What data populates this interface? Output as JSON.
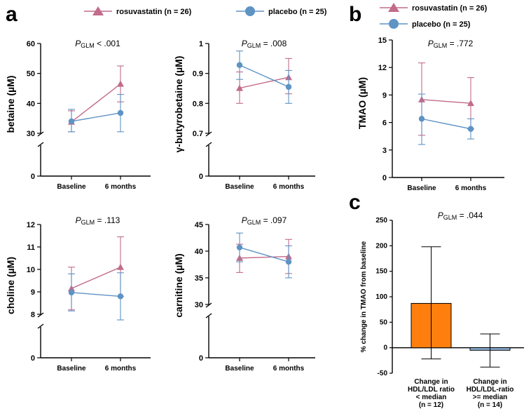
{
  "legend_a": {
    "rosuvastatin": "rosuvastatin (n = 26)",
    "placebo": "placebo (n = 25)"
  },
  "legend_b": {
    "rosuvastatin": "rosuvastatin (n = 26)",
    "placebo": "placebo (n = 25)"
  },
  "colors": {
    "rosuvastatin": "#c26b8a",
    "placebo": "#5e93c4",
    "bar_low": "#ff7f0e",
    "bar_high": "#8fb3d9"
  },
  "chart_data": [
    {
      "id": "betaine",
      "panel": "a",
      "type": "line",
      "pvalue": "P_GLM < .001",
      "ylabel": "betaine (µM)",
      "categories": [
        "Baseline",
        "6 months"
      ],
      "ylim": [
        0,
        60
      ],
      "yticks": [
        0,
        30,
        40,
        50,
        60
      ],
      "axis_break": true,
      "series": [
        {
          "name": "rosuvastatin",
          "values": [
            33.8,
            46.5
          ],
          "err_low": [
            30.5,
            40.5
          ],
          "err_high": [
            37.5,
            52.5
          ]
        },
        {
          "name": "placebo",
          "values": [
            34.0,
            36.8
          ],
          "err_low": [
            30.5,
            30.5
          ],
          "err_high": [
            38.0,
            43.0
          ]
        }
      ]
    },
    {
      "id": "gamma-butyrobetaine",
      "panel": "a",
      "type": "line",
      "pvalue": "P_GLM = .008",
      "ylabel": "γ-butyrobetaine (µM)",
      "categories": [
        "Baseline",
        "6 months"
      ],
      "ylim": [
        0,
        1.0
      ],
      "yticks": [
        0,
        0.7,
        0.8,
        0.9,
        1.0
      ],
      "axis_break": true,
      "series": [
        {
          "name": "rosuvastatin",
          "values": [
            0.851,
            0.887
          ],
          "err_low": [
            0.8,
            0.832
          ],
          "err_high": [
            0.905,
            0.95
          ]
        },
        {
          "name": "placebo",
          "values": [
            0.928,
            0.855
          ],
          "err_low": [
            0.88,
            0.8
          ],
          "err_high": [
            0.975,
            0.91
          ]
        }
      ]
    },
    {
      "id": "choline",
      "panel": "a",
      "type": "line",
      "pvalue": "P_GLM = .113",
      "ylabel": "choline (µM)",
      "categories": [
        "Baseline",
        "6 months"
      ],
      "ylim": [
        0,
        12
      ],
      "yticks": [
        0,
        8,
        9,
        10,
        11,
        12
      ],
      "axis_break": true,
      "series": [
        {
          "name": "rosuvastatin",
          "values": [
            9.15,
            10.1
          ],
          "err_low": [
            8.2,
            8.8
          ],
          "err_high": [
            10.1,
            11.45
          ]
        },
        {
          "name": "placebo",
          "values": [
            8.97,
            8.8
          ],
          "err_low": [
            8.15,
            7.75
          ],
          "err_high": [
            9.8,
            9.85
          ]
        }
      ]
    },
    {
      "id": "carnitine",
      "panel": "a",
      "type": "line",
      "pvalue": "P_GLM = .097",
      "ylabel": "carnitine (µM)",
      "categories": [
        "Baseline",
        "6 months"
      ],
      "ylim": [
        0,
        45
      ],
      "yticks": [
        0,
        30,
        35,
        40,
        45
      ],
      "axis_break": true,
      "series": [
        {
          "name": "rosuvastatin",
          "values": [
            38.7,
            39.0
          ],
          "err_low": [
            36.0,
            35.8
          ],
          "err_high": [
            41.3,
            42.2
          ]
        },
        {
          "name": "placebo",
          "values": [
            40.7,
            38.0
          ],
          "err_low": [
            38.0,
            35.0
          ],
          "err_high": [
            43.4,
            41.0
          ]
        }
      ]
    },
    {
      "id": "tmao",
      "panel": "b",
      "type": "line",
      "pvalue": "P_GLM = .772",
      "ylabel": "TMAO (µM)",
      "categories": [
        "Baseline",
        "6 months"
      ],
      "ylim": [
        0,
        15
      ],
      "yticks": [
        0,
        3,
        6,
        9,
        12,
        15
      ],
      "axis_break": false,
      "series": [
        {
          "name": "rosuvastatin",
          "values": [
            8.5,
            8.1
          ],
          "err_low": [
            4.6,
            5.3
          ],
          "err_high": [
            12.5,
            10.9
          ]
        },
        {
          "name": "placebo",
          "values": [
            6.4,
            5.3
          ],
          "err_low": [
            3.6,
            4.2
          ],
          "err_high": [
            9.1,
            6.4
          ]
        }
      ]
    },
    {
      "id": "tmao-change",
      "panel": "c",
      "type": "bar",
      "pvalue": "P_GLM = .044",
      "ylabel": "% change in TMAO from baseline",
      "categories": [
        [
          "Change in",
          "HDL/LDL ratio",
          "< median",
          "(n = 12)"
        ],
        [
          "Change in",
          "HDL/LDL-ratio",
          ">= median",
          "(n = 14)"
        ]
      ],
      "ylim": [
        -50,
        250
      ],
      "yticks": [
        -50,
        0,
        50,
        100,
        150,
        200,
        250
      ],
      "values": [
        87,
        -5
      ],
      "err_low": [
        -22,
        -38
      ],
      "err_high": [
        198,
        27
      ]
    }
  ],
  "panels": {
    "a": "a",
    "b": "b",
    "c": "c"
  }
}
